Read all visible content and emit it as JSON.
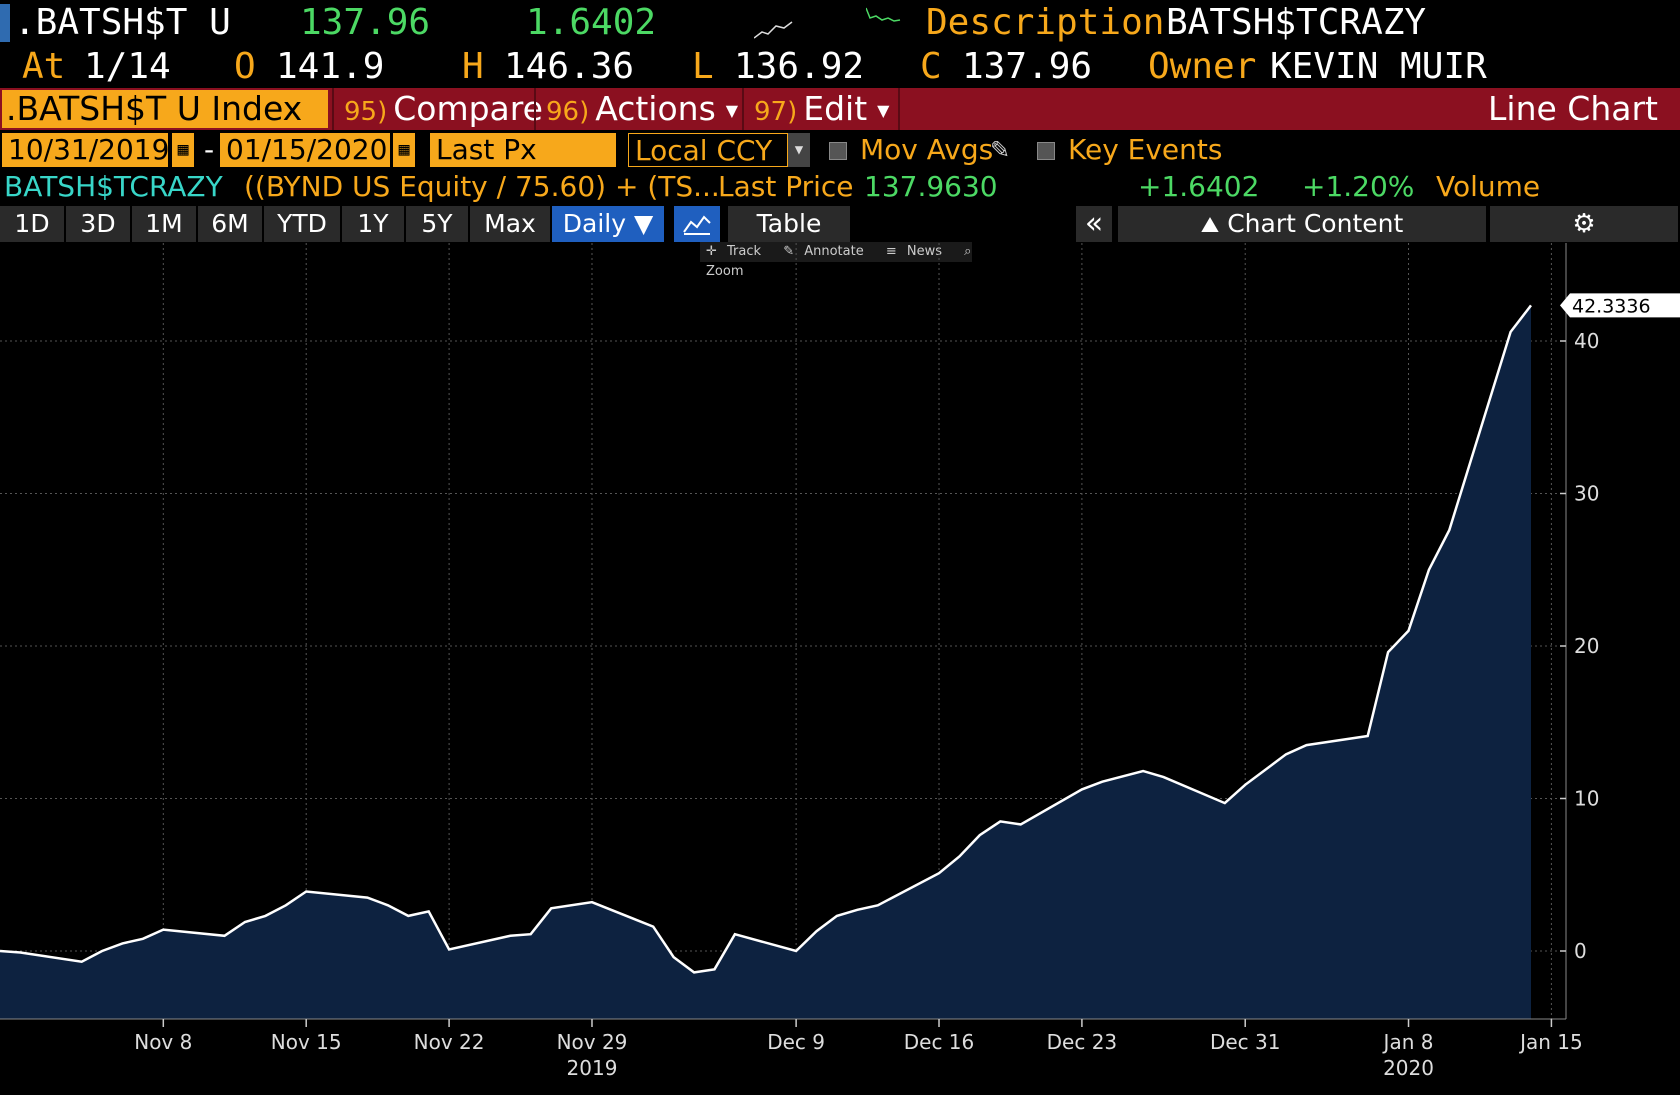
{
  "header": {
    "ticker": ".BATSH$T U",
    "last": "137.96",
    "change": "1.6402",
    "desc_label": "Description",
    "desc_value": "BATSH$TCRAZY",
    "at_label": "At",
    "at_value": "1/14",
    "open_label": "O",
    "open_value": "141.9",
    "high_label": "H",
    "high_value": "146.36",
    "low_label": "L",
    "low_value": "136.92",
    "close_label": "C",
    "close_value": "137.96",
    "owner_label": "Owner",
    "owner_value": "KEVIN MUIR"
  },
  "toolbar": {
    "index_field": ".BATSH$T U Index",
    "compare_num": "95)",
    "compare": "Compare",
    "actions_num": "96)",
    "actions": "Actions",
    "edit_num": "97)",
    "edit": "Edit",
    "chart_type": "Line Chart"
  },
  "settings_row": {
    "start_date": "10/31/2019",
    "date_sep": "-",
    "end_date": "01/15/2020",
    "field": "Last Px",
    "currency": "Local CCY",
    "mov_avgs": "Mov Avgs",
    "key_events": "Key Events"
  },
  "info_row": {
    "name": "BATSH$TCRAZY",
    "formula": "((BYND US Equity / 75.60) + (TS...",
    "last_price_label": "Last Price",
    "last_price": "137.9630",
    "change": "+1.6402",
    "pct_change": "+1.20%",
    "volume": "Volume"
  },
  "periods": [
    "1D",
    "3D",
    "1M",
    "6M",
    "YTD",
    "1Y",
    "5Y",
    "Max"
  ],
  "frequency": "Daily ▼",
  "table_label": "Table",
  "chart_content_label": "Chart Content",
  "chart_tools": [
    "Track",
    "Annotate",
    "News",
    "Zoom"
  ],
  "colors": {
    "accent_orange": "#f7a81b",
    "green": "#4cd964",
    "toolbar_red": "#8b1020",
    "area_fill": "#0d2240",
    "selected_blue": "#1f5fbf"
  },
  "chart_data": {
    "type": "area",
    "ylim": [
      -5.7,
      46.5
    ],
    "yticks": [
      0,
      10,
      20,
      30,
      40
    ],
    "ytick_labels": [
      "0",
      "10",
      "20",
      "30",
      "40"
    ],
    "last_value_label": "42.3336",
    "xtick_labels": [
      "Nov 8",
      "Nov 15",
      "Nov 22",
      "Nov 29",
      "Dec 9",
      "Dec 16",
      "Dec 23",
      "Dec 31",
      "Jan 8",
      "Jan 15"
    ],
    "year_labels": [
      "2019",
      "2020"
    ],
    "x": [
      "2019-10-31",
      "2019-11-01",
      "2019-11-04",
      "2019-11-05",
      "2019-11-06",
      "2019-11-07",
      "2019-11-08",
      "2019-11-11",
      "2019-11-12",
      "2019-11-13",
      "2019-11-14",
      "2019-11-15",
      "2019-11-18",
      "2019-11-19",
      "2019-11-20",
      "2019-11-21",
      "2019-11-22",
      "2019-11-25",
      "2019-11-26",
      "2019-11-27",
      "2019-11-29",
      "2019-12-02",
      "2019-12-03",
      "2019-12-04",
      "2019-12-05",
      "2019-12-06",
      "2019-12-09",
      "2019-12-10",
      "2019-12-11",
      "2019-12-12",
      "2019-12-13",
      "2019-12-16",
      "2019-12-17",
      "2019-12-18",
      "2019-12-19",
      "2019-12-20",
      "2019-12-23",
      "2019-12-24",
      "2019-12-26",
      "2019-12-27",
      "2019-12-30",
      "2019-12-31",
      "2020-01-02",
      "2020-01-03",
      "2020-01-06",
      "2020-01-07",
      "2020-01-08",
      "2020-01-09",
      "2020-01-10",
      "2020-01-13",
      "2020-01-14"
    ],
    "values": [
      0.0,
      -0.1,
      -0.7,
      0.0,
      0.5,
      0.8,
      1.4,
      1.0,
      1.9,
      2.3,
      3.0,
      3.9,
      3.5,
      3.0,
      2.3,
      2.6,
      0.1,
      1.0,
      1.1,
      2.8,
      3.2,
      1.6,
      -0.4,
      -1.4,
      -1.2,
      1.1,
      0.0,
      1.3,
      2.3,
      2.7,
      3.0,
      5.1,
      6.2,
      7.6,
      8.5,
      8.3,
      10.6,
      11.1,
      11.8,
      11.4,
      9.7,
      10.9,
      12.9,
      13.5,
      14.1,
      19.6,
      21.0,
      25.0,
      27.6,
      40.6,
      42.3336
    ]
  }
}
